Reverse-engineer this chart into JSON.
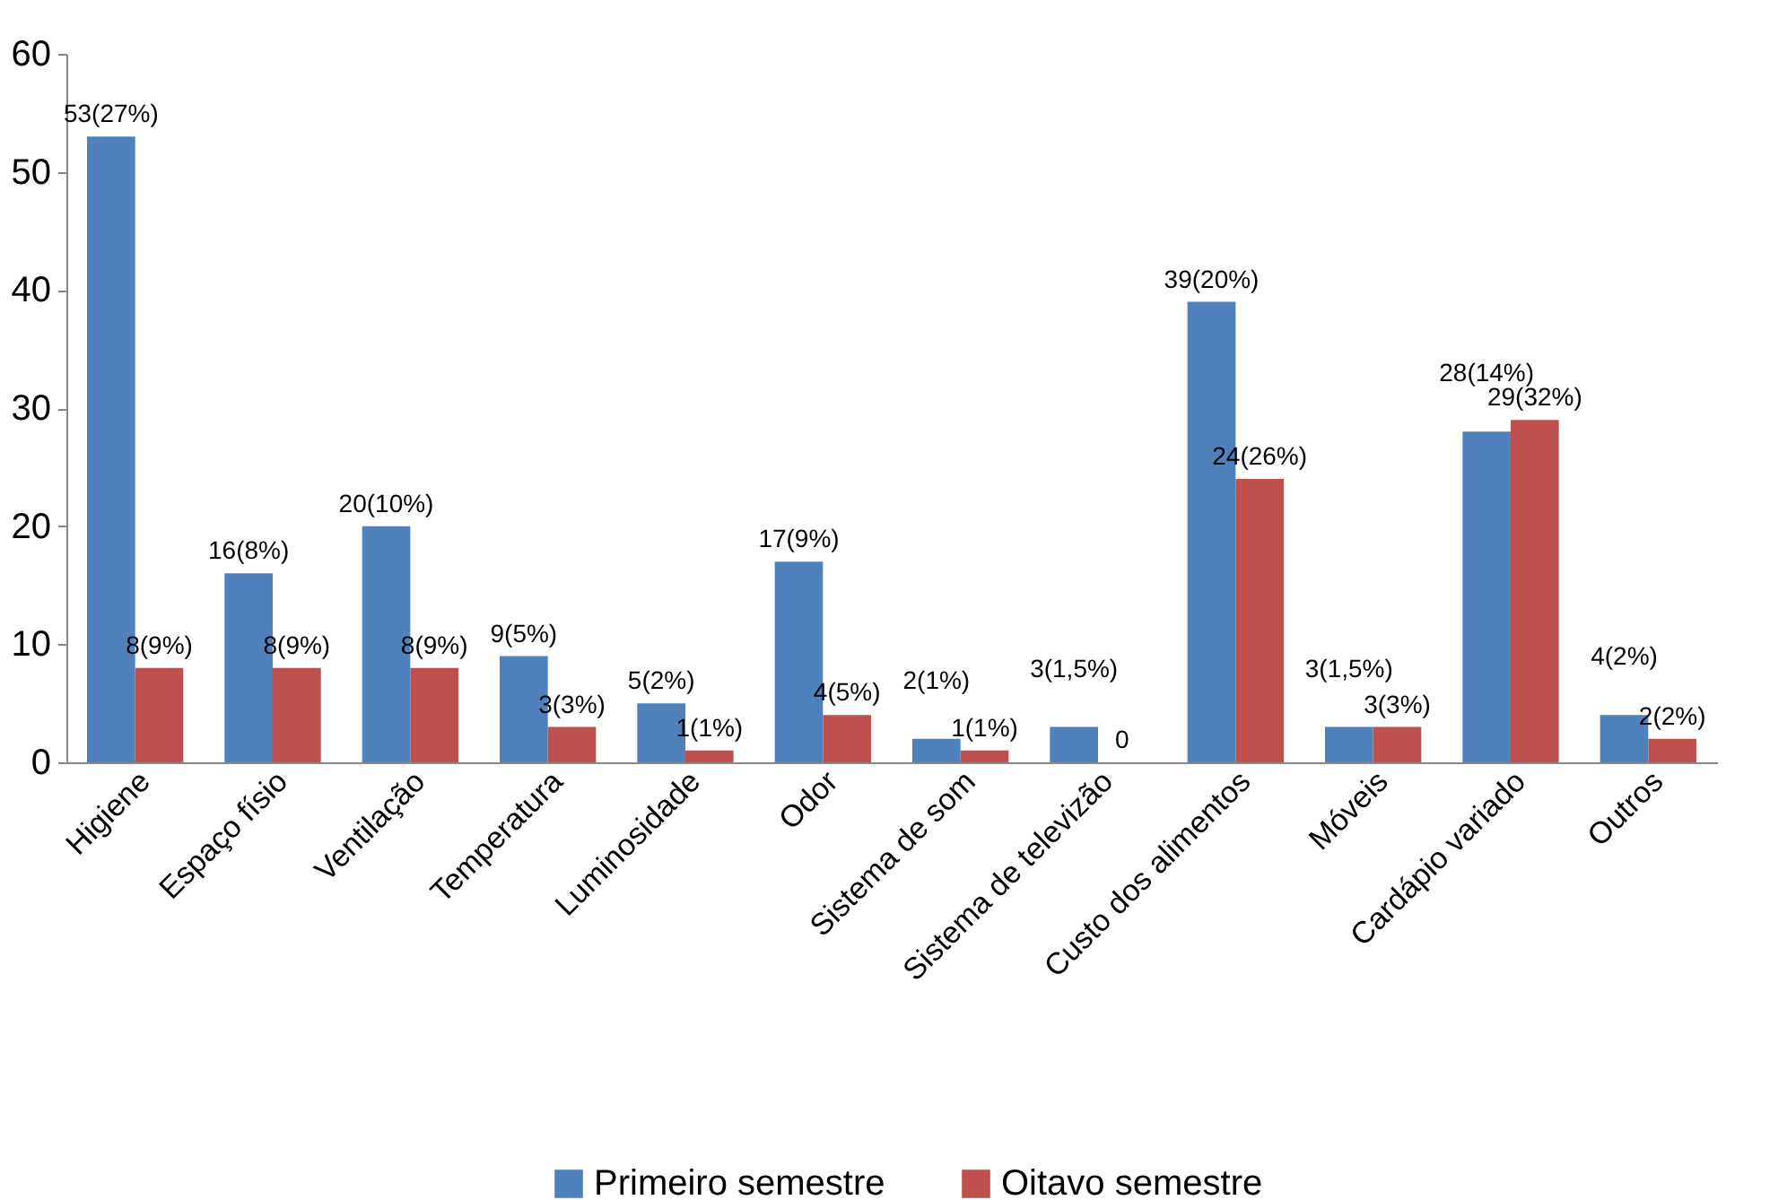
{
  "chart_data": {
    "type": "bar",
    "categories": [
      "Higiene",
      "Espaço físio",
      "Ventilação",
      "Temperatura",
      "Luminosidade",
      "Odor",
      "Sistema de som",
      "Sistema de televizão",
      "Custo dos alimentos",
      "Móveis",
      "Cardápio variado",
      "Outros"
    ],
    "series": [
      {
        "name": "Primeiro semestre",
        "color": "#4f81bd",
        "values": [
          53,
          16,
          20,
          9,
          5,
          17,
          2,
          3,
          39,
          3,
          28,
          4
        ],
        "value_labels": [
          "53(27%)",
          "16(8%)",
          "20(10%)",
          "9(5%)",
          "5(2%)",
          "17(9%)",
          "2(1%)",
          "3(1,5%)",
          "39(20%)",
          "3(1,5%)",
          "28(14%)",
          "4(2%)"
        ]
      },
      {
        "name": "Oitavo semestre",
        "color": "#c0504d",
        "values": [
          8,
          8,
          8,
          3,
          1,
          4,
          1,
          0,
          24,
          3,
          29,
          2
        ],
        "value_labels": [
          "8(9%)",
          "8(9%)",
          "8(9%)",
          "3(3%)",
          "1(1%)",
          "4(5%)",
          "1(1%)",
          "0",
          "24(26%)",
          "3(3%)",
          "29(32%)",
          "2(2%)"
        ]
      }
    ],
    "ylim": [
      0,
      60
    ],
    "yticks": [
      0,
      10,
      20,
      30,
      40,
      50,
      60
    ],
    "grid": false,
    "legend": "bottom"
  }
}
